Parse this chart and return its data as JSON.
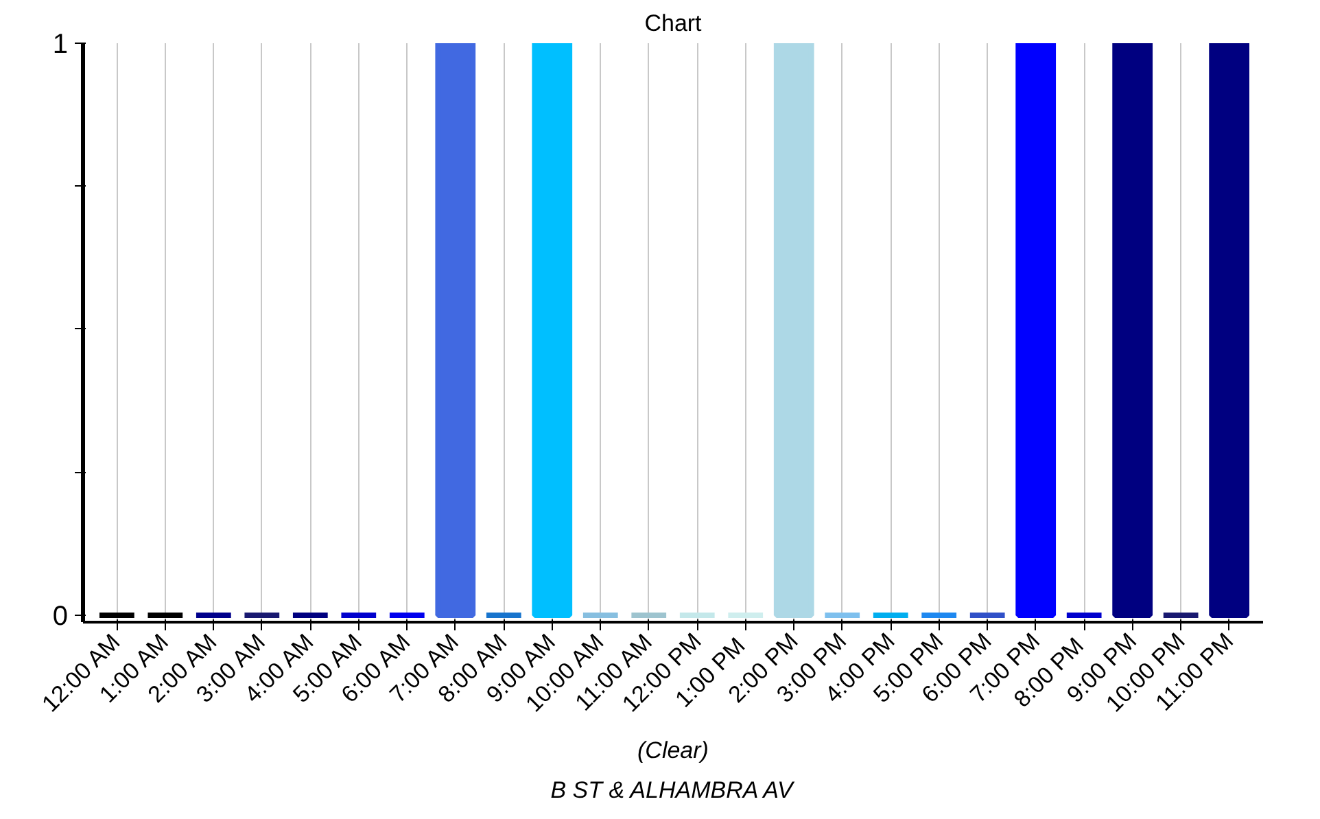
{
  "chart_data": {
    "type": "bar",
    "title": "Chart",
    "xlabel": "(Clear)",
    "annotations": [
      "B ST & ALHAMBRA AV"
    ],
    "categories": [
      "12:00 AM",
      "1:00 AM",
      "2:00 AM",
      "3:00 AM",
      "4:00 AM",
      "5:00 AM",
      "6:00 AM",
      "7:00 AM",
      "8:00 AM",
      "9:00 AM",
      "10:00 AM",
      "11:00 AM",
      "12:00 PM",
      "1:00  PM",
      "2:00 PM",
      "3:00 PM",
      "4:00 PM",
      "5:00 PM",
      "6:00 PM",
      "7:00 PM",
      "8:00  PM",
      "9:00 PM",
      "10:00 PM",
      "11:00 PM"
    ],
    "values": [
      0,
      0,
      0,
      0,
      0,
      0,
      0,
      1,
      0,
      1,
      0,
      0,
      0,
      0,
      1,
      0,
      0,
      0,
      0,
      1,
      0,
      1,
      0,
      1
    ],
    "colors": [
      "#000000",
      "#000000",
      "#00008b",
      "#191970",
      "#000080",
      "#0000cd",
      "#0000ee",
      "#4169e1",
      "#1874cd",
      "#00bfff",
      "#87bfe0",
      "#9ec4cf",
      "#c4e8ea",
      "#cfeeee",
      "#add8e6",
      "#7ec0ee",
      "#00aeef",
      "#1e88f0",
      "#3050c8",
      "#0000ff",
      "#0000cd",
      "#000080",
      "#191970",
      "#000080"
    ],
    "ylim": [
      0,
      1
    ],
    "yticks": [
      0,
      {
        "value": 0.25,
        "label": null
      },
      {
        "value": 0.5,
        "label": null
      },
      {
        "value": 0.75,
        "label": null
      },
      1
    ],
    "grid": "x"
  }
}
